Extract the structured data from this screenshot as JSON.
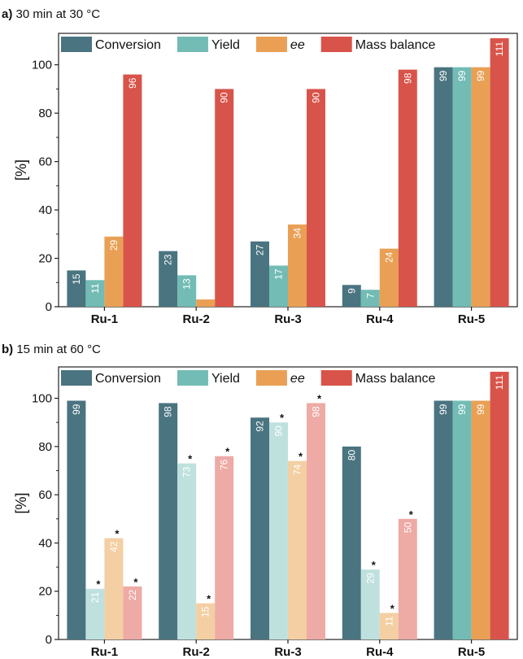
{
  "chart_data": [
    {
      "type": "bar",
      "panel_letter": "a)",
      "title": "30 min at 30 °C",
      "ylabel": "[%]",
      "ylim": [
        0,
        113
      ],
      "yticks": [
        0,
        20,
        40,
        60,
        80,
        100
      ],
      "categories": [
        "Ru-1",
        "Ru-2",
        "Ru-3",
        "Ru-4",
        "Ru-5"
      ],
      "legend_position": "top",
      "series": [
        {
          "name": "Conversion",
          "color": "#4a7480",
          "values": [
            15,
            23,
            27,
            9,
            99
          ],
          "labels": [
            "15",
            "23",
            "27",
            "9",
            "99"
          ],
          "starred": [
            false,
            false,
            false,
            false,
            false
          ],
          "faded": [
            false,
            false,
            false,
            false,
            false
          ]
        },
        {
          "name": "Yield",
          "color": "#72bcb5",
          "values": [
            11,
            13,
            17,
            7,
            99
          ],
          "labels": [
            "11",
            "13",
            "17",
            "7",
            "99"
          ],
          "starred": [
            false,
            false,
            false,
            false,
            false
          ],
          "faded": [
            false,
            false,
            false,
            false,
            false
          ]
        },
        {
          "name": "ee",
          "color": "#e9a055",
          "values": [
            29,
            3,
            34,
            24,
            99
          ],
          "labels": [
            "29",
            "",
            "34",
            "24",
            "99"
          ],
          "starred": [
            false,
            false,
            false,
            false,
            false
          ],
          "faded": [
            false,
            false,
            false,
            false,
            false
          ]
        },
        {
          "name": "Mass balance",
          "color": "#d8544a",
          "values": [
            96,
            90,
            90,
            98,
            111
          ],
          "labels": [
            "96",
            "90",
            "90",
            "98",
            "111"
          ],
          "starred": [
            false,
            false,
            false,
            false,
            false
          ],
          "faded": [
            false,
            false,
            false,
            false,
            false
          ]
        }
      ]
    },
    {
      "type": "bar",
      "panel_letter": "b)",
      "title": "15 min at 60 °C",
      "ylabel": "[%]",
      "ylim": [
        0,
        113
      ],
      "yticks": [
        0,
        20,
        40,
        60,
        80,
        100
      ],
      "categories": [
        "Ru-1",
        "Ru-2",
        "Ru-3",
        "Ru-4",
        "Ru-5"
      ],
      "legend_position": "top",
      "series": [
        {
          "name": "Conversion",
          "color": "#4a7480",
          "values": [
            99,
            98,
            92,
            80,
            99
          ],
          "labels": [
            "99",
            "98",
            "92",
            "80",
            "99"
          ],
          "starred": [
            false,
            false,
            false,
            false,
            false
          ],
          "faded": [
            false,
            false,
            false,
            false,
            false
          ]
        },
        {
          "name": "Yield",
          "color": "#72bcb5",
          "faded_color": "#bfe1de",
          "values": [
            21,
            73,
            90,
            29,
            99
          ],
          "labels": [
            "21",
            "73",
            "90",
            "29",
            "99"
          ],
          "starred": [
            true,
            true,
            true,
            true,
            false
          ],
          "faded": [
            true,
            true,
            true,
            true,
            false
          ]
        },
        {
          "name": "ee",
          "color": "#e9a055",
          "faded_color": "#f3cfa3",
          "values": [
            42,
            15,
            74,
            11,
            99
          ],
          "labels": [
            "42",
            "15",
            "74",
            "11",
            "99"
          ],
          "starred": [
            true,
            true,
            true,
            true,
            false
          ],
          "faded": [
            true,
            true,
            true,
            true,
            false
          ]
        },
        {
          "name": "Mass balance",
          "color": "#d8544a",
          "faded_color": "#eeaaa5",
          "values": [
            22,
            76,
            98,
            50,
            111
          ],
          "labels": [
            "22",
            "76",
            "98",
            "50",
            "111"
          ],
          "starred": [
            true,
            true,
            true,
            true,
            false
          ],
          "faded": [
            true,
            true,
            true,
            true,
            false
          ]
        }
      ],
      "annotation_mark": "*"
    }
  ]
}
